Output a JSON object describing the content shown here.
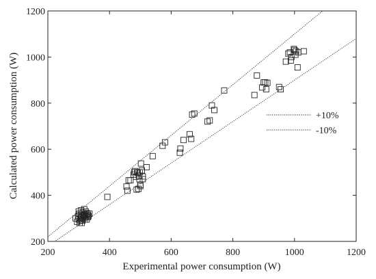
{
  "chart_data": {
    "type": "scatter",
    "title": "",
    "xlabel": "Experimental power consumption (W)",
    "ylabel": "Calculated power consumption (W)",
    "xlim": [
      200,
      1200
    ],
    "ylim": [
      200,
      1200
    ],
    "xticks": [
      200,
      400,
      600,
      800,
      1000,
      1200
    ],
    "yticks": [
      200,
      400,
      600,
      800,
      1000,
      1200
    ],
    "grid": false,
    "marker": "square",
    "legend": {
      "placement": "right",
      "entries": [
        {
          "label": "+10%",
          "factor": 1.1
        },
        {
          "label": "-10%",
          "factor": 0.9
        }
      ]
    },
    "series": [
      {
        "points": [
          [
            290,
            300
          ],
          [
            295,
            285
          ],
          [
            298,
            310
          ],
          [
            300,
            295
          ],
          [
            302,
            320
          ],
          [
            303,
            280
          ],
          [
            305,
            300
          ],
          [
            306,
            290
          ],
          [
            308,
            315
          ],
          [
            308,
            335
          ],
          [
            310,
            305
          ],
          [
            312,
            290
          ],
          [
            313,
            325
          ],
          [
            315,
            300
          ],
          [
            316,
            310
          ],
          [
            318,
            340
          ],
          [
            320,
            295
          ],
          [
            320,
            318
          ],
          [
            322,
            305
          ],
          [
            323,
            330
          ],
          [
            325,
            310
          ],
          [
            326,
            295
          ],
          [
            328,
            322
          ],
          [
            330,
            315
          ],
          [
            330,
            305
          ],
          [
            332,
            310
          ],
          [
            335,
            320
          ],
          [
            300,
            330
          ],
          [
            310,
            280
          ],
          [
            318,
            312
          ],
          [
            393,
            393
          ],
          [
            455,
            438
          ],
          [
            458,
            420
          ],
          [
            462,
            465
          ],
          [
            468,
            465
          ],
          [
            478,
            490
          ],
          [
            480,
            500
          ],
          [
            483,
            505
          ],
          [
            486,
            480
          ],
          [
            488,
            425
          ],
          [
            490,
            500
          ],
          [
            492,
            498
          ],
          [
            494,
            428
          ],
          [
            495,
            485
          ],
          [
            497,
            470
          ],
          [
            498,
            500
          ],
          [
            500,
            445
          ],
          [
            500,
            440
          ],
          [
            502,
            538
          ],
          [
            505,
            508
          ],
          [
            508,
            482
          ],
          [
            508,
            470
          ],
          [
            520,
            522
          ],
          [
            540,
            570
          ],
          [
            572,
            615
          ],
          [
            580,
            630
          ],
          [
            628,
            585
          ],
          [
            630,
            603
          ],
          [
            640,
            640
          ],
          [
            660,
            665
          ],
          [
            665,
            645
          ],
          [
            668,
            750
          ],
          [
            675,
            755
          ],
          [
            718,
            720
          ],
          [
            725,
            725
          ],
          [
            732,
            790
          ],
          [
            740,
            770
          ],
          [
            772,
            855
          ],
          [
            870,
            835
          ],
          [
            878,
            920
          ],
          [
            895,
            868
          ],
          [
            900,
            890
          ],
          [
            905,
            890
          ],
          [
            908,
            860
          ],
          [
            912,
            888
          ],
          [
            950,
            870
          ],
          [
            955,
            860
          ],
          [
            972,
            980
          ],
          [
            980,
            1015
          ],
          [
            985,
            1020
          ],
          [
            988,
            985
          ],
          [
            990,
            1000
          ],
          [
            998,
            1035
          ],
          [
            1000,
            1030
          ],
          [
            1003,
            1010
          ],
          [
            1005,
            1025
          ],
          [
            1010,
            955
          ],
          [
            1012,
            1020
          ],
          [
            1030,
            1025
          ]
        ]
      }
    ]
  }
}
